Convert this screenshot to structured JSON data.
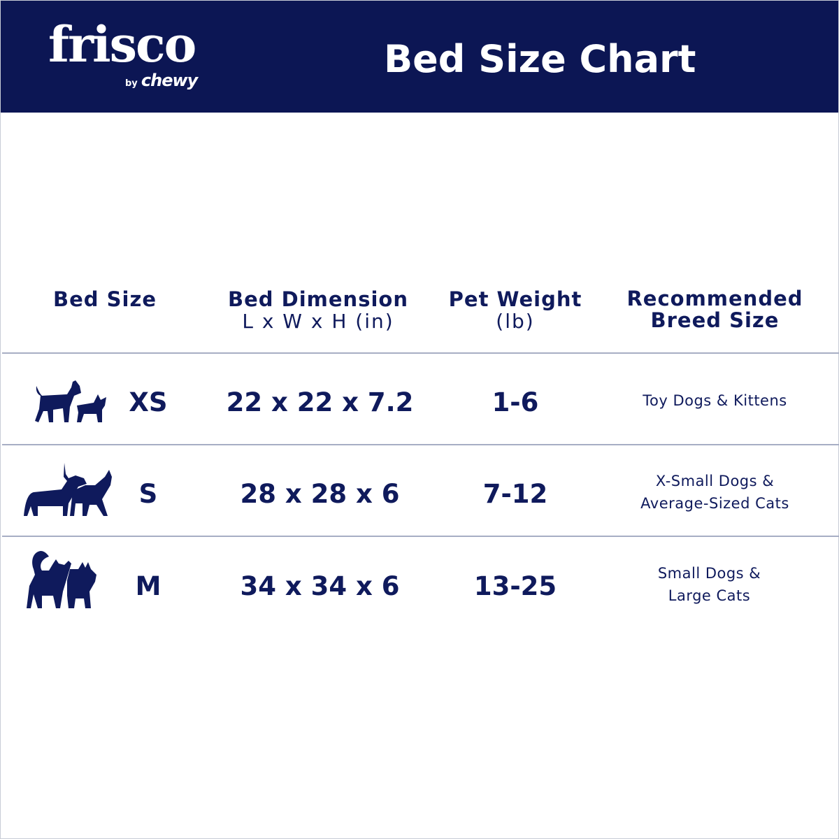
{
  "header": {
    "logo": {
      "brand": "frisco",
      "by": "by",
      "parent": "chewy"
    },
    "title": "Bed Size Chart"
  },
  "colors": {
    "navy": "#0c1654",
    "text": "#0f1a5c",
    "divider": "#a7aec4"
  },
  "table": {
    "columns": [
      {
        "label": "Bed Size",
        "sub": ""
      },
      {
        "label": "Bed Dimension",
        "sub": "L x W x H (in)"
      },
      {
        "label": "Pet Weight",
        "sub": "(lb)"
      },
      {
        "label": "Recommended",
        "sub": "Breed Size"
      }
    ],
    "rows": [
      {
        "icon": "small-dog-and-kitten-icon",
        "size": "XS",
        "dimension": "22 x 22 x 7.2",
        "weight": "1-6",
        "breed_line1": "Toy Dogs & Kittens",
        "breed_line2": ""
      },
      {
        "icon": "dachshund-and-cat-icon",
        "size": "S",
        "dimension": "28 x 28 x 6",
        "weight": "7-12",
        "breed_line1": "X-Small Dogs &",
        "breed_line2": "Average-Sized Cats"
      },
      {
        "icon": "small-dogs-and-large-cat-icon",
        "size": "M",
        "dimension": "34 x 34 x 6",
        "weight": "13-25",
        "breed_line1": "Small Dogs &",
        "breed_line2": "Large Cats"
      }
    ]
  }
}
